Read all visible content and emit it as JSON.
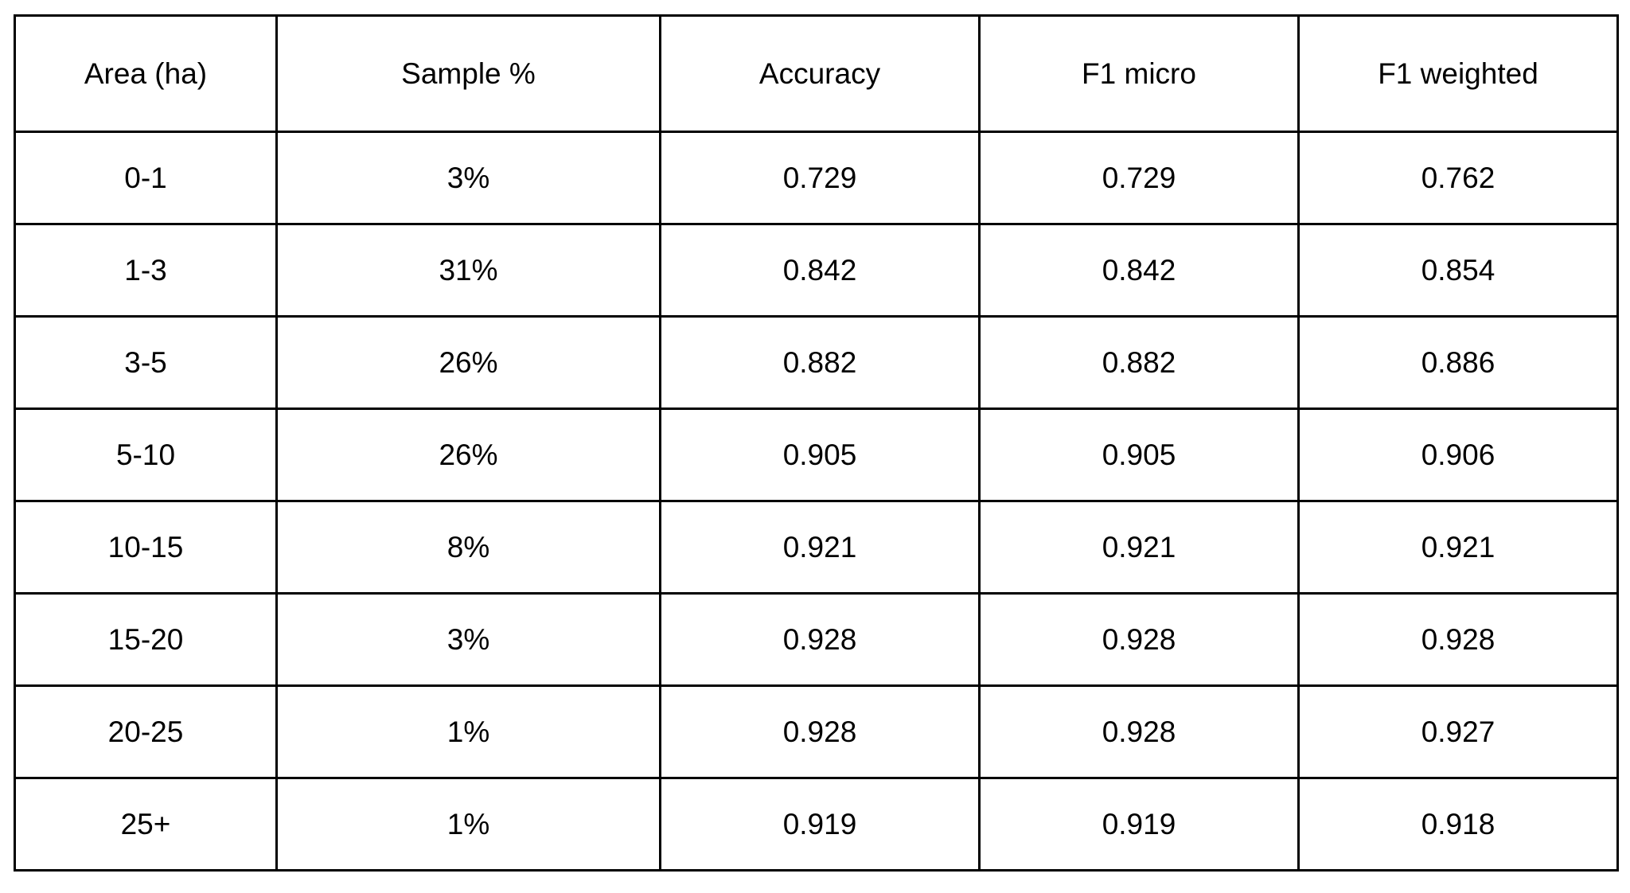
{
  "table": {
    "header": [
      "Area (ha)",
      "Sample %",
      "Accuracy",
      "F1 micro",
      "F1 weighted"
    ],
    "rows": [
      [
        "0-1",
        "3%",
        "0.729",
        "0.729",
        "0.762"
      ],
      [
        "1-3",
        "31%",
        "0.842",
        "0.842",
        "0.854"
      ],
      [
        "3-5",
        "26%",
        "0.882",
        "0.882",
        "0.886"
      ],
      [
        "5-10",
        "26%",
        "0.905",
        "0.905",
        "0.906"
      ],
      [
        "10-15",
        "8%",
        "0.921",
        "0.921",
        "0.921"
      ],
      [
        "15-20",
        "3%",
        "0.928",
        "0.928",
        "0.928"
      ],
      [
        "20-25",
        "1%",
        "0.928",
        "0.928",
        "0.927"
      ],
      [
        "25+",
        "1%",
        "0.919",
        "0.919",
        "0.918"
      ]
    ]
  }
}
